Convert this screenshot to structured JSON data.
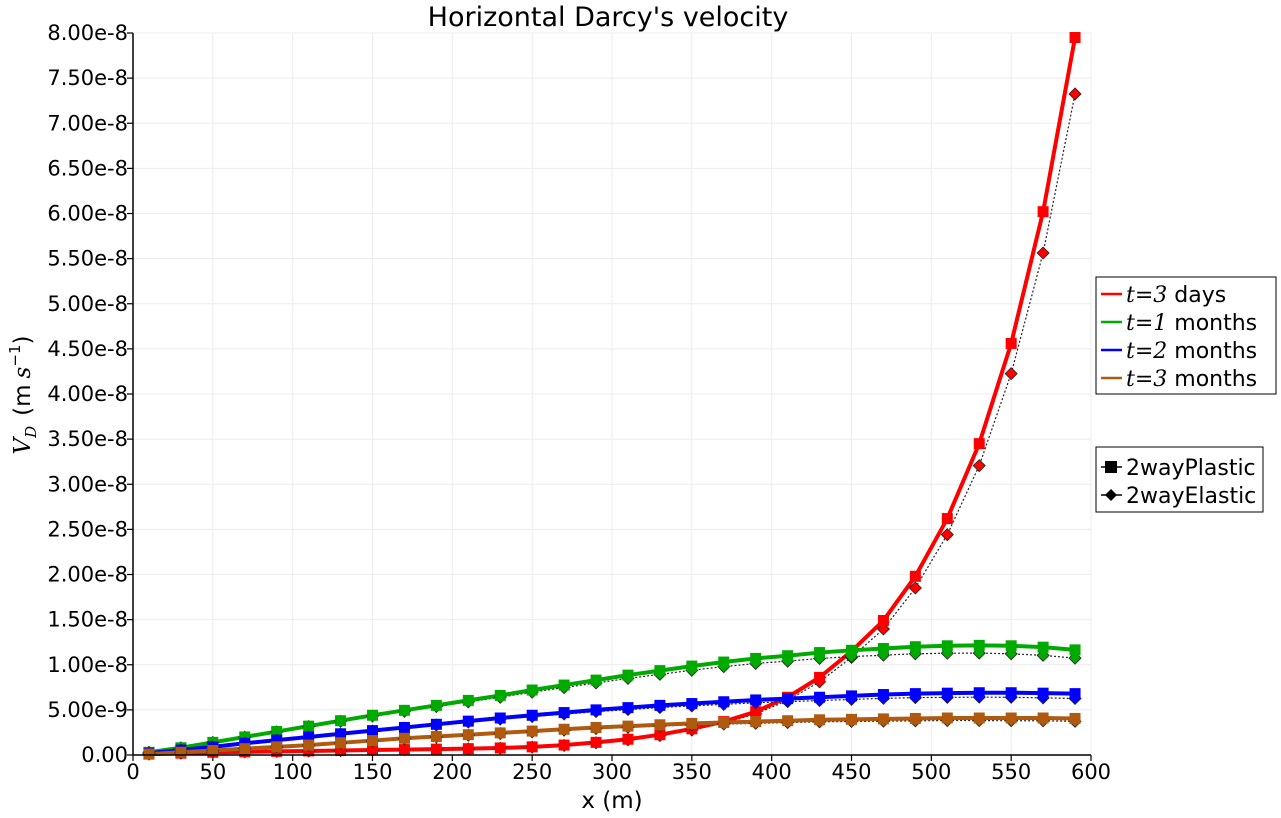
{
  "chart_data": {
    "type": "line",
    "title": "Horizontal Darcy's velocity",
    "xlabel": "x (m)",
    "ylabel": {
      "symbol": "V",
      "subscript": "D",
      "unit_prefix": "m",
      "unit_symbol": "s",
      "unit_exponent": "−1"
    },
    "xlim": [
      0,
      600
    ],
    "ylim": [
      0,
      8e-08
    ],
    "grid": true,
    "x_ticks": [
      "0",
      "50",
      "100",
      "150",
      "200",
      "250",
      "300",
      "350",
      "400",
      "450",
      "500",
      "550",
      "600"
    ],
    "y_ticks": [
      "0.00",
      "5.00e-9",
      "1.00e-8",
      "1.50e-8",
      "2.00e-8",
      "2.50e-8",
      "3.00e-8",
      "3.50e-8",
      "4.00e-8",
      "4.50e-8",
      "5.00e-8",
      "5.50e-8",
      "6.00e-8",
      "6.50e-8",
      "7.00e-8",
      "7.50e-8",
      "8.00e-8"
    ],
    "x": [
      10,
      30,
      50,
      70,
      90,
      110,
      130,
      150,
      170,
      190,
      210,
      230,
      250,
      270,
      290,
      310,
      330,
      350,
      370,
      390,
      410,
      430,
      450,
      470,
      490,
      510,
      530,
      550,
      570,
      590
    ],
    "series": [
      {
        "legend_math": "t=3",
        "legend_unit": "days",
        "color": "#ff0000",
        "values": [
          1e-10,
          2e-10,
          3e-10,
          3.5e-10,
          4e-10,
          4.5e-10,
          5e-10,
          5.5e-10,
          6e-10,
          6.5e-10,
          7e-10,
          7.8e-10,
          9e-10,
          1.1e-09,
          1.4e-09,
          1.75e-09,
          2.25e-09,
          2.9e-09,
          3.7e-09,
          4.8e-09,
          6.4e-09,
          8.6e-09,
          1.15e-08,
          1.49e-08,
          1.98e-08,
          2.62e-08,
          3.45e-08,
          4.56e-08,
          6.02e-08,
          7.95e-08
        ]
      },
      {
        "legend_math": "t=1",
        "legend_unit": "months",
        "color": "#00aa00",
        "values": [
          3e-10,
          8e-10,
          1.4e-09,
          2e-09,
          2.6e-09,
          3.2e-09,
          3.8e-09,
          4.4e-09,
          4.95e-09,
          5.5e-09,
          6.05e-09,
          6.6e-09,
          7.2e-09,
          7.75e-09,
          8.3e-09,
          8.85e-09,
          9.35e-09,
          9.85e-09,
          1.03e-08,
          1.07e-08,
          1.1e-08,
          1.135e-08,
          1.16e-08,
          1.18e-08,
          1.2e-08,
          1.21e-08,
          1.215e-08,
          1.21e-08,
          1.195e-08,
          1.165e-08
        ]
      },
      {
        "legend_math": "t=2",
        "legend_unit": "months",
        "color": "#0000ff",
        "values": [
          2e-10,
          5.5e-10,
          9e-10,
          1.3e-09,
          1.65e-09,
          2e-09,
          2.35e-09,
          2.7e-09,
          3.05e-09,
          3.4e-09,
          3.75e-09,
          4.1e-09,
          4.4e-09,
          4.7e-09,
          5e-09,
          5.25e-09,
          5.5e-09,
          5.7e-09,
          5.9e-09,
          6.1e-09,
          6.25e-09,
          6.4e-09,
          6.55e-09,
          6.7e-09,
          6.8e-09,
          6.85e-09,
          6.9e-09,
          6.9e-09,
          6.85e-09,
          6.8e-09
        ]
      },
      {
        "legend_math": "t=3",
        "legend_unit": "months",
        "color": "#b05a10",
        "values": [
          1e-10,
          3e-10,
          5e-10,
          7e-10,
          9e-10,
          1.1e-09,
          1.35e-09,
          1.6e-09,
          1.85e-09,
          2.05e-09,
          2.25e-09,
          2.45e-09,
          2.65e-09,
          2.85e-09,
          3.05e-09,
          3.2e-09,
          3.35e-09,
          3.5e-09,
          3.6e-09,
          3.7e-09,
          3.8e-09,
          3.9e-09,
          3.95e-09,
          4e-09,
          4.05e-09,
          4.1e-09,
          4.1e-09,
          4.1e-09,
          4.1e-09,
          4.05e-09
        ]
      }
    ],
    "marker_legend": [
      {
        "label": "2wayPlastic",
        "marker": "square"
      },
      {
        "label": "2wayElastic",
        "marker": "diamond"
      }
    ],
    "legend_position": "right"
  }
}
